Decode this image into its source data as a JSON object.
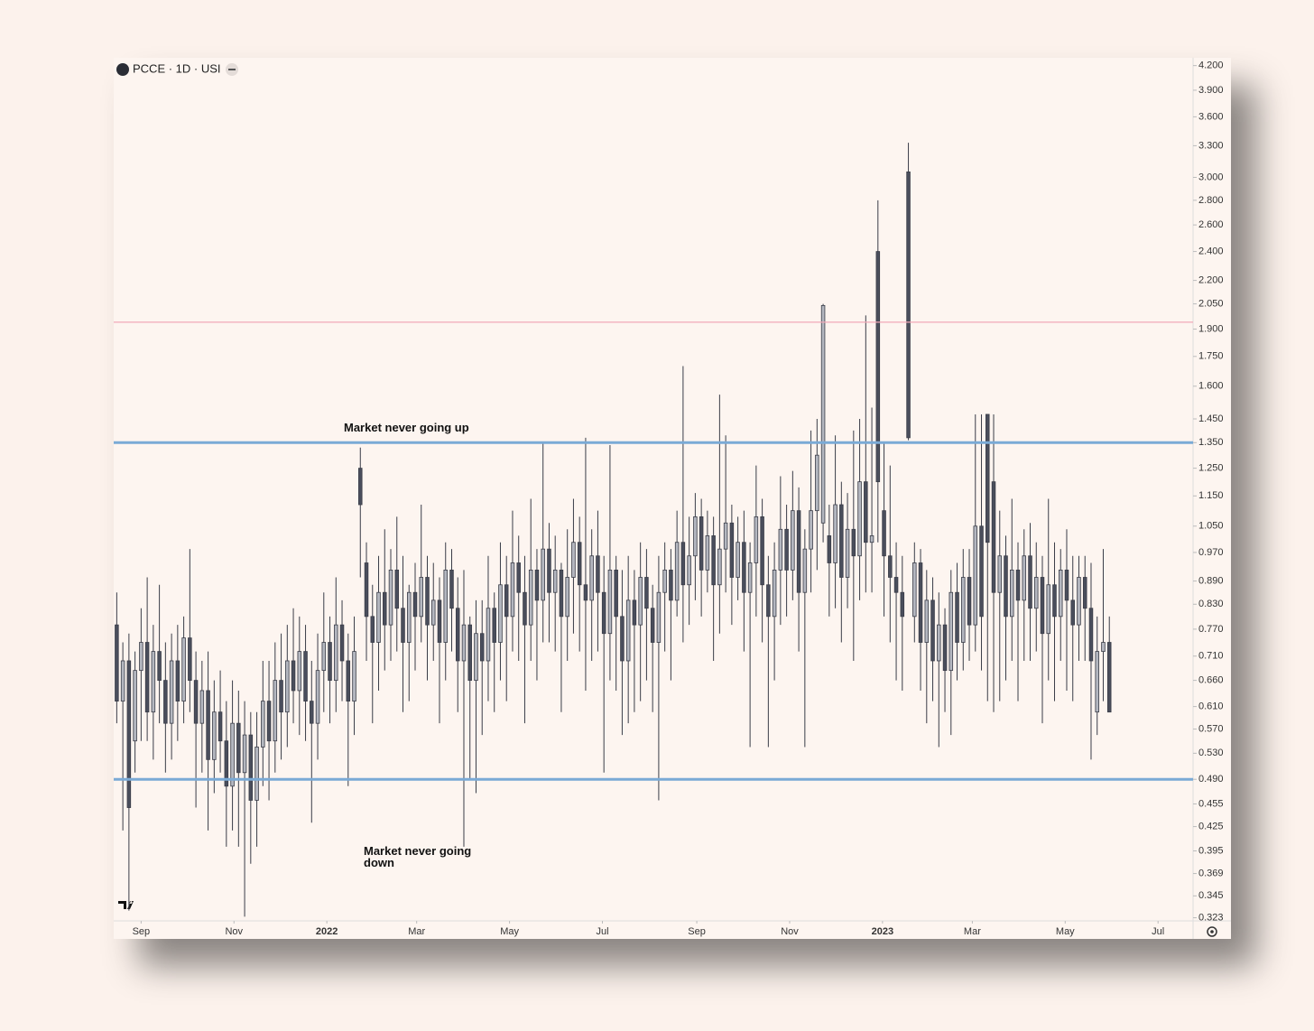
{
  "chart_data": {
    "type": "candlestick",
    "title": "PCCE · 1D · USI",
    "log_scale": true,
    "up_color": "#b4b7c0",
    "down_color": "#4a4e5c",
    "outline_color": "#3a3d48",
    "ylim": [
      0.32,
      4.3
    ],
    "yticks": [
      {
        "value": 4.2,
        "label": "4.200"
      },
      {
        "value": 3.9,
        "label": "3.900"
      },
      {
        "value": 3.6,
        "label": "3.600"
      },
      {
        "value": 3.3,
        "label": "3.300"
      },
      {
        "value": 3.0,
        "label": "3.000"
      },
      {
        "value": 2.8,
        "label": "2.800"
      },
      {
        "value": 2.6,
        "label": "2.600"
      },
      {
        "value": 2.4,
        "label": "2.400"
      },
      {
        "value": 2.2,
        "label": "2.200"
      },
      {
        "value": 2.05,
        "label": "2.050"
      },
      {
        "value": 1.9,
        "label": "1.900"
      },
      {
        "value": 1.75,
        "label": "1.750"
      },
      {
        "value": 1.6,
        "label": "1.600"
      },
      {
        "value": 1.45,
        "label": "1.450"
      },
      {
        "value": 1.35,
        "label": "1.350"
      },
      {
        "value": 1.25,
        "label": "1.250"
      },
      {
        "value": 1.15,
        "label": "1.150"
      },
      {
        "value": 1.05,
        "label": "1.050"
      },
      {
        "value": 0.97,
        "label": "0.970"
      },
      {
        "value": 0.89,
        "label": "0.890"
      },
      {
        "value": 0.83,
        "label": "0.830"
      },
      {
        "value": 0.77,
        "label": "0.770"
      },
      {
        "value": 0.71,
        "label": "0.710"
      },
      {
        "value": 0.66,
        "label": "0.660"
      },
      {
        "value": 0.61,
        "label": "0.610"
      },
      {
        "value": 0.57,
        "label": "0.570"
      },
      {
        "value": 0.53,
        "label": "0.530"
      },
      {
        "value": 0.49,
        "label": "0.490"
      },
      0.455,
      0.425,
      0.395,
      0.369,
      0.345,
      0.323
    ],
    "xlim": [
      -18,
      691
    ],
    "xticks": [
      {
        "value": 0,
        "label": "Sep"
      },
      {
        "value": 61,
        "label": "Nov"
      },
      {
        "value": 122,
        "label": "2022"
      },
      {
        "value": 181,
        "label": "Mar"
      },
      {
        "value": 242,
        "label": "May"
      },
      {
        "value": 303,
        "label": "Jul"
      },
      {
        "value": 365,
        "label": "Sep"
      },
      {
        "value": 426,
        "label": "Nov"
      },
      {
        "value": 487,
        "label": "2023"
      },
      {
        "value": 546,
        "label": "Mar"
      },
      {
        "value": 607,
        "label": "May"
      },
      {
        "value": 668,
        "label": "Jul"
      }
    ],
    "hlines": [
      {
        "value": 1.35,
        "color": "#7aaad6"
      },
      {
        "value": 0.49,
        "color": "#7aaad6"
      },
      {
        "value": 1.94,
        "color": "#f2a9b8"
      }
    ],
    "annotations": [
      "Market never going up",
      "Market never going down"
    ],
    "x": [
      -16,
      -12,
      -8,
      -4,
      0,
      4,
      8,
      12,
      16,
      20,
      24,
      28,
      32,
      36,
      40,
      44,
      48,
      52,
      56,
      60,
      64,
      68,
      72,
      76,
      80,
      84,
      88,
      92,
      96,
      100,
      104,
      108,
      112,
      116,
      120,
      124,
      128,
      132,
      136,
      140,
      144,
      148,
      152,
      156,
      160,
      164,
      168,
      172,
      176,
      180,
      184,
      188,
      192,
      196,
      200,
      204,
      208,
      212,
      216,
      220,
      224,
      228,
      232,
      236,
      240,
      244,
      248,
      252,
      256,
      260,
      264,
      268,
      272,
      276,
      280,
      284,
      288,
      292,
      296,
      300,
      304,
      308,
      312,
      316,
      320,
      324,
      328,
      332,
      336,
      340,
      344,
      348,
      352,
      356,
      360,
      364,
      368,
      372,
      376,
      380,
      384,
      388,
      392,
      396,
      400,
      404,
      408,
      412,
      416,
      420,
      424,
      428,
      432,
      436,
      440,
      444,
      448,
      452,
      456,
      460,
      464,
      468,
      472,
      476,
      480,
      484,
      488,
      492,
      496,
      500,
      504,
      508,
      512,
      516,
      520,
      524,
      528,
      532,
      536,
      540,
      544,
      548,
      552,
      556,
      560,
      564,
      568,
      572,
      576,
      580,
      584,
      588,
      592,
      596,
      600,
      604,
      608,
      612,
      616,
      620,
      624,
      628,
      632,
      636
    ],
    "open": [
      0.78,
      0.62,
      0.7,
      0.55,
      0.68,
      0.74,
      0.6,
      0.72,
      0.66,
      0.58,
      0.7,
      0.62,
      0.75,
      0.66,
      0.58,
      0.64,
      0.52,
      0.6,
      0.55,
      0.48,
      0.58,
      0.5,
      0.56,
      0.46,
      0.54,
      0.62,
      0.55,
      0.66,
      0.6,
      0.7,
      0.64,
      0.72,
      0.62,
      0.58,
      0.68,
      0.74,
      0.66,
      0.78,
      0.7,
      0.62,
      1.25,
      0.94,
      0.8,
      0.74,
      0.86,
      0.78,
      0.92,
      0.82,
      0.74,
      0.86,
      0.8,
      0.9,
      0.78,
      0.84,
      0.74,
      0.92,
      0.82,
      0.7,
      0.78,
      0.66,
      0.76,
      0.7,
      0.82,
      0.74,
      0.88,
      0.8,
      0.94,
      0.86,
      0.78,
      0.92,
      0.84,
      0.98,
      0.86,
      0.92,
      0.8,
      0.9,
      1.0,
      0.88,
      0.84,
      0.96,
      0.86,
      0.76,
      0.92,
      0.8,
      0.7,
      0.84,
      0.78,
      0.9,
      0.82,
      0.74,
      0.86,
      0.92,
      0.84,
      1.0,
      0.88,
      0.96,
      1.08,
      0.92,
      1.02,
      0.88,
      0.98,
      1.06,
      0.9,
      1.0,
      0.86,
      0.94,
      1.08,
      0.88,
      0.8,
      0.92,
      1.04,
      0.92,
      1.1,
      0.86,
      0.98,
      1.1,
      1.06,
      1.02,
      0.94,
      1.12,
      0.9,
      1.04,
      0.96,
      1.2,
      1.0,
      2.4,
      1.1,
      0.96,
      0.9,
      0.86,
      3.05,
      0.8,
      0.94,
      0.74,
      0.84,
      0.7,
      0.78,
      0.68,
      0.86,
      0.74,
      0.9,
      0.78,
      1.05,
      1.47,
      1.2,
      0.86,
      0.96,
      0.8,
      0.92,
      0.84,
      0.96,
      0.82,
      0.9,
      0.76,
      0.88,
      0.8,
      0.92,
      0.84,
      0.78,
      0.9,
      0.82,
      0.6,
      0.72,
      0.74
    ],
    "high": [
      0.86,
      0.74,
      0.76,
      0.72,
      0.82,
      0.9,
      0.78,
      0.88,
      0.74,
      0.76,
      0.78,
      0.8,
      0.98,
      0.72,
      0.7,
      0.72,
      0.66,
      0.68,
      0.62,
      0.66,
      0.64,
      0.62,
      0.6,
      0.6,
      0.7,
      0.7,
      0.74,
      0.76,
      0.78,
      0.82,
      0.8,
      0.78,
      0.7,
      0.76,
      0.86,
      0.8,
      0.9,
      0.84,
      0.76,
      0.8,
      1.33,
      1.0,
      0.88,
      0.96,
      1.04,
      0.98,
      1.08,
      0.96,
      0.88,
      0.94,
      1.12,
      0.96,
      0.94,
      0.9,
      1.0,
      0.98,
      0.9,
      0.92,
      0.8,
      0.84,
      0.84,
      0.96,
      0.86,
      1.0,
      0.96,
      1.1,
      1.02,
      0.96,
      1.14,
      0.98,
      1.35,
      1.06,
      1.02,
      0.94,
      1.04,
      1.14,
      1.08,
      1.37,
      1.04,
      1.1,
      0.96,
      1.34,
      0.96,
      0.92,
      0.96,
      0.92,
      1.0,
      0.98,
      0.88,
      0.96,
      1.0,
      0.98,
      1.1,
      1.7,
      1.08,
      1.16,
      1.14,
      1.1,
      1.08,
      1.56,
      1.38,
      1.12,
      1.08,
      1.1,
      1.0,
      1.26,
      1.14,
      0.96,
      1.0,
      1.22,
      1.12,
      1.24,
      1.18,
      1.04,
      1.4,
      1.45,
      2.05,
      1.12,
      1.38,
      1.2,
      1.16,
      1.4,
      1.45,
      1.98,
      1.5,
      2.8,
      1.35,
      1.26,
      1.0,
      0.96,
      3.33,
      1.0,
      0.98,
      0.92,
      0.9,
      0.86,
      0.82,
      0.92,
      0.94,
      0.98,
      0.98,
      1.47,
      1.47,
      1.47,
      1.47,
      1.1,
      1.02,
      1.14,
      1.0,
      1.04,
      1.06,
      1.0,
      0.96,
      1.14,
      1.0,
      0.98,
      1.04,
      0.96,
      0.96,
      0.96,
      0.94,
      0.8,
      0.98,
      0.8
    ],
    "low": [
      0.58,
      0.42,
      0.33,
      0.5,
      0.55,
      0.55,
      0.52,
      0.58,
      0.5,
      0.52,
      0.55,
      0.58,
      0.6,
      0.45,
      0.5,
      0.42,
      0.47,
      0.5,
      0.4,
      0.42,
      0.4,
      0.324,
      0.38,
      0.4,
      0.48,
      0.46,
      0.5,
      0.52,
      0.54,
      0.58,
      0.56,
      0.55,
      0.43,
      0.52,
      0.6,
      0.58,
      0.6,
      0.62,
      0.48,
      0.56,
      0.9,
      0.7,
      0.58,
      0.64,
      0.68,
      0.7,
      0.72,
      0.6,
      0.62,
      0.68,
      0.74,
      0.66,
      0.7,
      0.58,
      0.66,
      0.72,
      0.6,
      0.4,
      0.49,
      0.47,
      0.56,
      0.62,
      0.6,
      0.66,
      0.62,
      0.72,
      0.7,
      0.58,
      0.7,
      0.66,
      0.74,
      0.74,
      0.72,
      0.6,
      0.7,
      0.76,
      0.72,
      0.64,
      0.7,
      0.72,
      0.5,
      0.66,
      0.64,
      0.56,
      0.58,
      0.6,
      0.62,
      0.66,
      0.6,
      0.46,
      0.72,
      0.66,
      0.8,
      0.74,
      0.78,
      0.84,
      0.8,
      0.86,
      0.7,
      0.76,
      0.86,
      0.78,
      0.84,
      0.72,
      0.54,
      0.8,
      0.74,
      0.54,
      0.66,
      0.78,
      0.8,
      0.84,
      0.72,
      0.54,
      0.86,
      0.92,
      1.0,
      0.8,
      0.82,
      0.74,
      0.82,
      0.7,
      0.84,
      0.86,
      0.86,
      1.0,
      0.8,
      0.74,
      0.66,
      0.64,
      1.36,
      0.74,
      0.64,
      0.58,
      0.62,
      0.54,
      0.6,
      0.56,
      0.66,
      0.68,
      0.7,
      0.72,
      0.68,
      0.62,
      0.6,
      0.62,
      0.66,
      0.7,
      0.62,
      0.7,
      0.7,
      0.72,
      0.58,
      0.66,
      0.62,
      0.7,
      0.64,
      0.62,
      0.7,
      0.7,
      0.52,
      0.56,
      0.62,
      0.6
    ],
    "close": [
      0.62,
      0.7,
      0.45,
      0.68,
      0.74,
      0.6,
      0.72,
      0.66,
      0.58,
      0.7,
      0.62,
      0.75,
      0.66,
      0.58,
      0.64,
      0.52,
      0.6,
      0.55,
      0.48,
      0.58,
      0.5,
      0.56,
      0.46,
      0.54,
      0.62,
      0.55,
      0.66,
      0.6,
      0.7,
      0.64,
      0.72,
      0.62,
      0.58,
      0.68,
      0.74,
      0.66,
      0.78,
      0.7,
      0.62,
      0.72,
      1.12,
      0.8,
      0.74,
      0.86,
      0.78,
      0.92,
      0.82,
      0.74,
      0.86,
      0.8,
      0.9,
      0.78,
      0.84,
      0.74,
      0.92,
      0.82,
      0.7,
      0.78,
      0.66,
      0.76,
      0.7,
      0.82,
      0.74,
      0.88,
      0.8,
      0.94,
      0.86,
      0.78,
      0.92,
      0.84,
      0.98,
      0.86,
      0.92,
      0.8,
      0.9,
      1.0,
      0.88,
      0.84,
      0.96,
      0.86,
      0.76,
      0.92,
      0.8,
      0.7,
      0.84,
      0.78,
      0.9,
      0.82,
      0.74,
      0.86,
      0.92,
      0.84,
      1.0,
      0.88,
      0.96,
      1.08,
      0.92,
      1.02,
      0.88,
      0.98,
      1.06,
      0.9,
      1.0,
      0.86,
      0.94,
      1.08,
      0.88,
      0.8,
      0.92,
      1.04,
      0.92,
      1.1,
      0.86,
      0.98,
      1.1,
      1.3,
      2.04,
      0.94,
      1.12,
      0.9,
      1.04,
      0.96,
      1.2,
      1.0,
      1.02,
      1.2,
      0.96,
      0.9,
      0.86,
      0.8,
      1.37,
      0.94,
      0.74,
      0.84,
      0.7,
      0.78,
      0.68,
      0.86,
      0.74,
      0.9,
      0.78,
      1.05,
      0.8,
      1.0,
      0.86,
      0.96,
      0.8,
      0.92,
      0.84,
      0.96,
      0.82,
      0.9,
      0.76,
      0.88,
      0.8,
      0.92,
      0.84,
      0.78,
      0.9,
      0.82,
      0.7,
      0.72,
      0.74,
      0.6
    ]
  }
}
